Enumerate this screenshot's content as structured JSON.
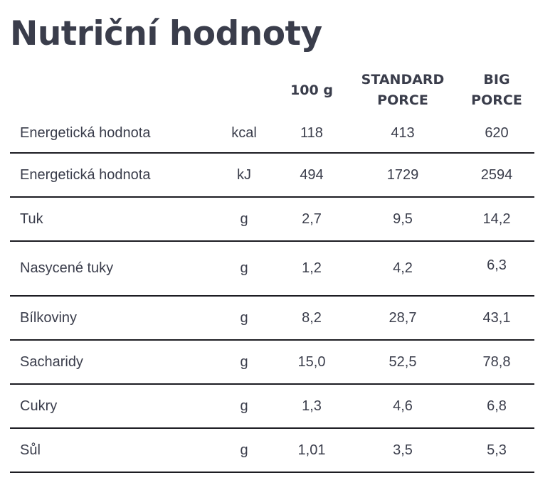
{
  "title": "Nutriční hodnoty",
  "table": {
    "headers": {
      "per100g": "100 g",
      "standard_line1": "STANDARD",
      "standard_line2": "PORCE",
      "big_line1": "BIG",
      "big_line2": "PORCE"
    },
    "rows": [
      {
        "name": "Energetická hodnota",
        "unit": "kcal",
        "per100g": "118",
        "standard": "413",
        "big": "620"
      },
      {
        "name": "Energetická hodnota",
        "unit": "kJ",
        "per100g": "494",
        "standard": "1729",
        "big": "2594"
      },
      {
        "name": "Tuk",
        "unit": "g",
        "per100g": "2,7",
        "standard": "9,5",
        "big": "14,2"
      },
      {
        "name": "Nasycené tuky",
        "unit": "g",
        "per100g": "1,2",
        "standard": "4,2",
        "big": "6,3"
      },
      {
        "name": "Bílkoviny",
        "unit": "g",
        "per100g": "8,2",
        "standard": "28,7",
        "big": "43,1"
      },
      {
        "name": "Sacharidy",
        "unit": "g",
        "per100g": "15,0",
        "standard": "52,5",
        "big": "78,8"
      },
      {
        "name": "Cukry",
        "unit": "g",
        "per100g": "1,3",
        "standard": "4,6",
        "big": "6,8"
      },
      {
        "name": "Sůl",
        "unit": "g",
        "per100g": "1,01",
        "standard": "3,5",
        "big": "5,3"
      }
    ]
  }
}
